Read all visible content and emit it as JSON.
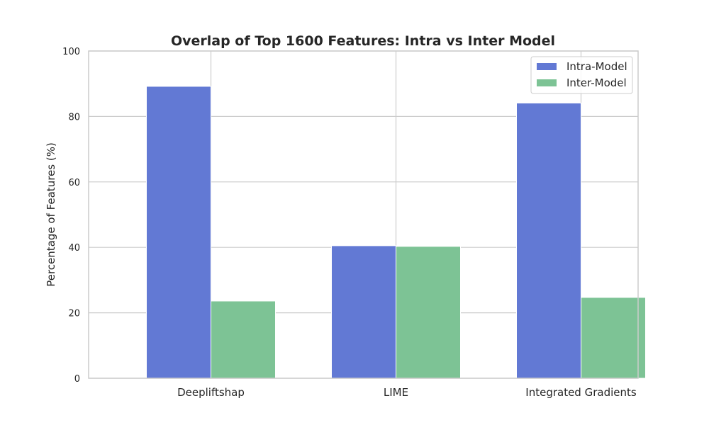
{
  "chart_data": {
    "type": "bar",
    "title": "Overlap of Top 1600 Features: Intra vs Inter Model",
    "xlabel": "",
    "ylabel": "Percentage of Features (%)",
    "ylim": [
      0,
      100
    ],
    "yticks": [
      "0",
      "20",
      "40",
      "60",
      "80",
      "100"
    ],
    "categories": [
      "Deepliftshap",
      "LIME",
      "Integrated Gradients"
    ],
    "series": [
      {
        "name": "Intra-Model",
        "color": "#6279d4",
        "values": [
          89.2,
          40.5,
          84.1
        ]
      },
      {
        "name": "Inter-Model",
        "color": "#7dc395",
        "values": [
          23.6,
          40.3,
          24.7
        ]
      }
    ],
    "grid": true,
    "legend": "top-right"
  }
}
